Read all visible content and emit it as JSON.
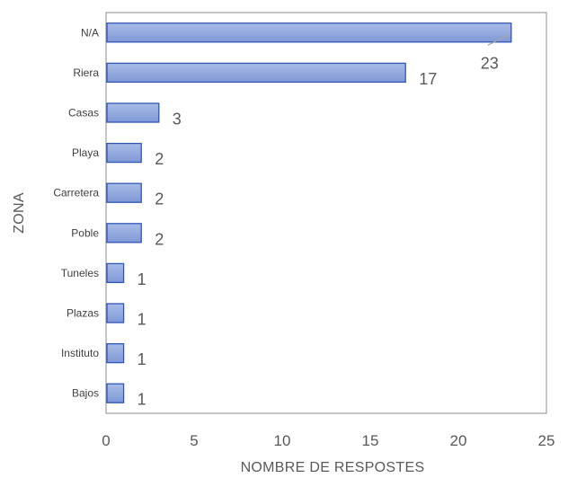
{
  "chart_data": {
    "type": "bar",
    "orientation": "horizontal",
    "categories": [
      "N/A",
      "Riera",
      "Casas",
      "Playa",
      "Carretera",
      "Poble",
      "Tuneles",
      "Plazas",
      "Instituto",
      "Bajos"
    ],
    "values": [
      23,
      17,
      3,
      2,
      2,
      2,
      1,
      1,
      1,
      1
    ],
    "data_labels": [
      "23",
      "17",
      "3",
      "2",
      "2",
      "2",
      "1",
      "1",
      "1",
      "1"
    ],
    "xlabel": "NOMBRE DE RESPOSTES",
    "ylabel": "ZONA",
    "xlim": [
      0,
      25
    ],
    "xticks": [
      "0",
      "5",
      "10",
      "15",
      "20",
      "25"
    ],
    "grid": false,
    "legend": "none",
    "colors": {
      "bar_fill_top": "#a9bbe6",
      "bar_fill_bottom": "#7f98d6",
      "bar_stroke": "#2f55b5",
      "plot_border": "#8c8c8c",
      "leader_line": "#a6a6a6"
    }
  }
}
